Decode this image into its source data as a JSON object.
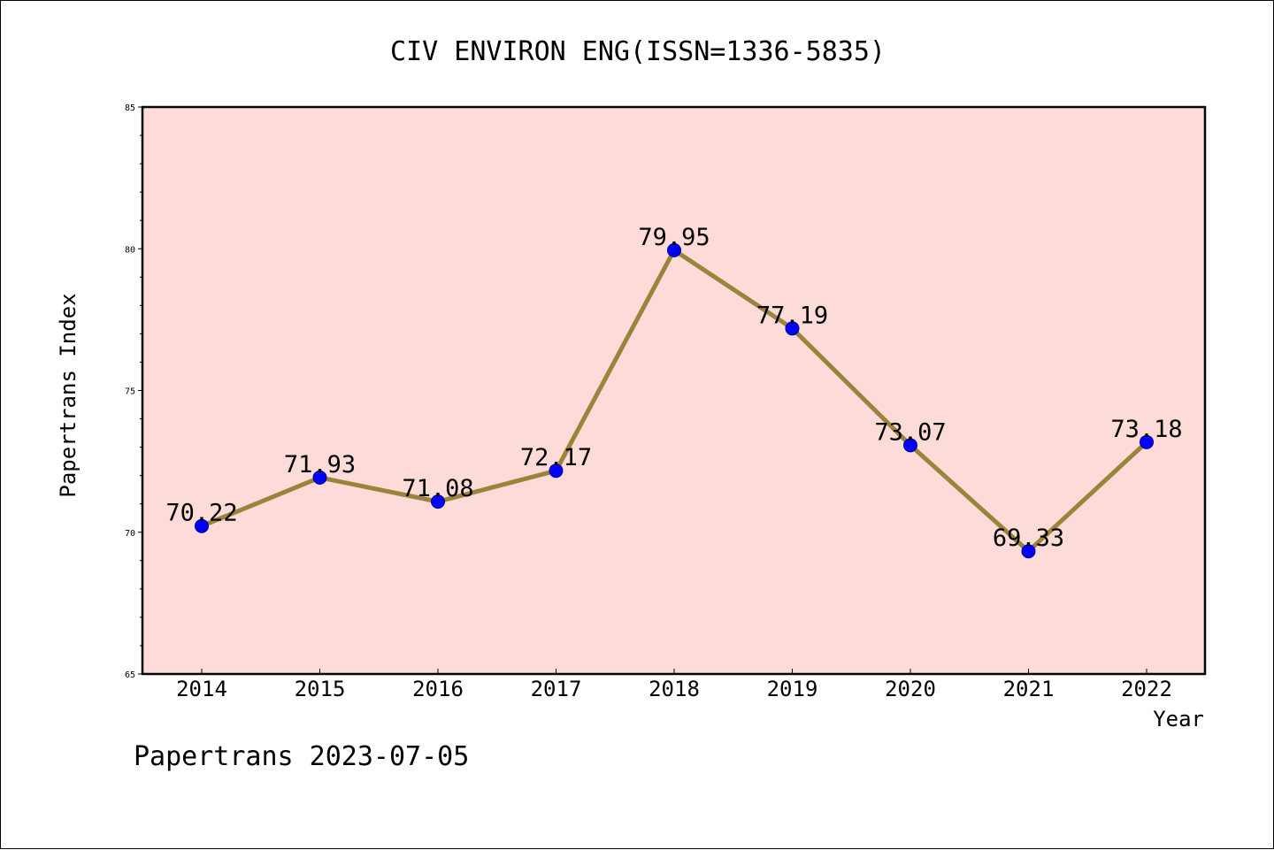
{
  "chart_data": {
    "type": "line",
    "title": "CIV ENVIRON ENG(ISSN=1336-5835)",
    "xlabel": "Year",
    "ylabel": "Papertrans Index",
    "categories": [
      "2014",
      "2015",
      "2016",
      "2017",
      "2018",
      "2019",
      "2020",
      "2021",
      "2022"
    ],
    "values": [
      70.22,
      71.93,
      71.08,
      72.17,
      79.95,
      77.19,
      73.07,
      69.33,
      73.18
    ],
    "value_labels": [
      "70.22",
      "71.93",
      "71.08",
      "72.17",
      "79.95",
      "77.19",
      "73.07",
      "69.33",
      "73.18"
    ],
    "ylim": [
      65,
      85
    ],
    "yticks": [
      "65",
      "70",
      "75",
      "80",
      "85"
    ],
    "grid": false,
    "legend": "none",
    "colors": {
      "plot_background": "#fddbd8",
      "line": "#9a843c",
      "marker": "#0000ff"
    }
  },
  "footer": "Papertrans 2023-07-05"
}
